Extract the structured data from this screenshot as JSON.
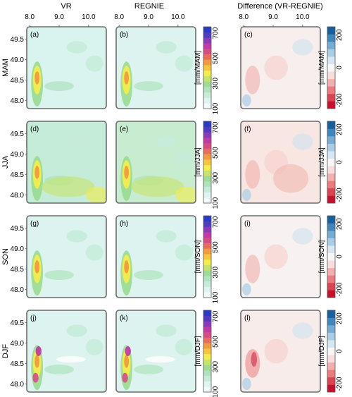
{
  "chart_data": {
    "type": "heatmap",
    "column_titles": [
      "VR",
      "REGNIE",
      "Difference (VR-REGNIE)"
    ],
    "row_labels": [
      "MAM",
      "JJA",
      "SON",
      "DJF"
    ],
    "panel_labels": [
      [
        "(a)",
        "(b)",
        "(c)"
      ],
      [
        "(d)",
        "(e)",
        "(f)"
      ],
      [
        "(g)",
        "(h)",
        "(i)"
      ],
      [
        "(j)",
        "(k)",
        "(l)"
      ]
    ],
    "x_ticks": [
      "8.0",
      "9.0",
      "10.0"
    ],
    "x_tick_values": [
      8.0,
      9.0,
      10.0
    ],
    "y_ticks": [
      "49.5",
      "49.0",
      "48.5",
      "48.0"
    ],
    "y_tick_values": [
      49.5,
      49.0,
      48.5,
      48.0
    ],
    "xlim": [
      7.9,
      10.6
    ],
    "ylim": [
      47.8,
      49.8
    ],
    "precip_colorbar": {
      "ticks": [
        "100",
        "300",
        "500",
        "700"
      ],
      "tick_values": [
        100,
        300,
        500,
        700
      ],
      "range": [
        100,
        750
      ],
      "colors": [
        "#f2fbfb",
        "#dff4f1",
        "#c6ecd9",
        "#aee3bd",
        "#9cdc95",
        "#c6e46a",
        "#f3ec4a",
        "#f8c43c",
        "#f39a3e",
        "#ea6d5b",
        "#d84c85",
        "#c23aa8",
        "#8a3aba",
        "#4f3bc4",
        "#2a3ac6"
      ],
      "units": [
        "[mm/MAM]",
        "[mm/JJA]",
        "[mm/SON]",
        "[mm/DJF]"
      ]
    },
    "diff_colorbar": {
      "ticks": [
        "200",
        "0",
        "-200"
      ],
      "tick_values": [
        200,
        0,
        -200
      ],
      "range": [
        -250,
        250
      ],
      "colors": [
        "#c8102e",
        "#dd4451",
        "#ec7b80",
        "#f5aeae",
        "#fbdcdc",
        "#f6f6f6",
        "#d6e7f3",
        "#a9cde6",
        "#74acd3",
        "#3f86bd",
        "#1760a0"
      ],
      "units": [
        "[mm/MAM]",
        "[mm/JJA]",
        "[mm/SON]",
        "[mm/DJF]"
      ]
    },
    "panel_fill": {
      "VR": [
        "#d9f3ef",
        "#c4ecd8",
        "#dcf3ef",
        "#dcf3ef"
      ],
      "REGNIE": [
        "#dcf3ef",
        "#c8eccf",
        "#dcf3ef",
        "#dcf3ef"
      ],
      "Difference": [
        "#f7eeee",
        "#f8e6e3",
        "#f7f1f1",
        "#f8ecea"
      ]
    }
  }
}
